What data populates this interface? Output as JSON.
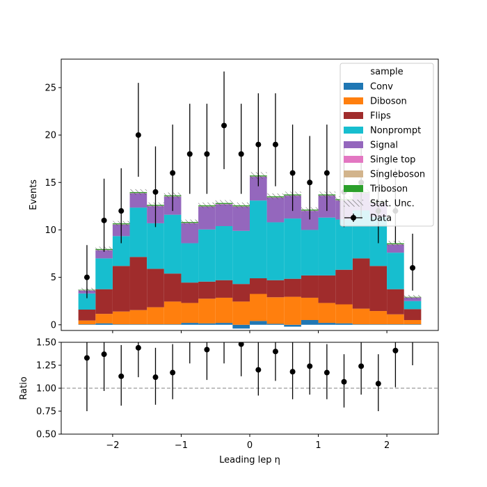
{
  "chart_data": [
    {
      "type": "bar",
      "stacked": true,
      "xlabel": "Leading lep η",
      "ylabel": "Events",
      "xlim": [
        -2.75,
        2.75
      ],
      "ylim": [
        -0.6,
        28
      ],
      "xticks": [
        -2,
        -1,
        0,
        1,
        2
      ],
      "xtick_labels": [
        "−2",
        "−1",
        "0",
        "1",
        "2"
      ],
      "yticks": [
        0,
        5,
        10,
        15,
        20,
        25
      ],
      "bin_edges": [
        -2.5,
        -2.25,
        -2.0,
        -1.75,
        -1.5,
        -1.25,
        -1.0,
        -0.75,
        -0.5,
        -0.25,
        0.0,
        0.25,
        0.5,
        0.75,
        1.0,
        1.25,
        1.5,
        1.75,
        2.0,
        2.25,
        2.5
      ],
      "legend": {
        "title": "sample",
        "location": "upper right",
        "entries": [
          "Conv",
          "Diboson",
          "Flips",
          "Nonprompt",
          "Signal",
          "Single top",
          "Singleboson",
          "Triboson",
          "Stat. Unc.",
          "Data"
        ]
      },
      "series": [
        {
          "name": "Conv",
          "color": "#1f77b4",
          "values": [
            0.05,
            0.15,
            0.05,
            0.05,
            0.05,
            0.05,
            0.2,
            0.15,
            0.2,
            -0.4,
            0.4,
            0.1,
            -0.2,
            0.5,
            0.2,
            0.15,
            0.05,
            0.05,
            0.05,
            0.05
          ]
        },
        {
          "name": "Diboson",
          "color": "#ff7f0e",
          "values": [
            0.4,
            1.0,
            1.35,
            1.5,
            1.8,
            2.4,
            2.1,
            2.6,
            2.65,
            2.45,
            2.85,
            2.8,
            2.95,
            2.35,
            2.1,
            2.0,
            1.65,
            1.4,
            1.05,
            0.45
          ]
        },
        {
          "name": "Flips",
          "color": "#a02c2c",
          "values": [
            1.15,
            2.6,
            4.8,
            5.6,
            4.05,
            2.95,
            2.15,
            1.8,
            1.85,
            1.85,
            1.65,
            1.8,
            1.9,
            2.35,
            2.9,
            3.65,
            5.3,
            4.75,
            2.65,
            1.15
          ]
        },
        {
          "name": "Nonprompt",
          "color": "#17becf",
          "values": [
            1.7,
            3.25,
            3.15,
            5.2,
            4.8,
            6.2,
            4.15,
            5.5,
            5.7,
            5.6,
            8.2,
            6.1,
            6.35,
            4.8,
            6.1,
            5.3,
            5.05,
            5.15,
            3.85,
            0.85
          ]
        },
        {
          "name": "Signal",
          "color": "#9467bd",
          "values": [
            0.3,
            0.85,
            1.2,
            1.5,
            1.8,
            1.9,
            2.1,
            2.4,
            2.3,
            2.55,
            2.5,
            2.6,
            2.4,
            2.0,
            2.3,
            2.0,
            1.8,
            1.5,
            0.85,
            0.35
          ]
        },
        {
          "name": "Single top",
          "color": "#e377c2",
          "values": [
            0.02,
            0.02,
            0.02,
            0.02,
            0.02,
            0.02,
            0.02,
            0.02,
            0.02,
            0.02,
            0.02,
            0.02,
            0.02,
            0.02,
            0.02,
            0.02,
            0.02,
            0.02,
            0.02,
            0.02
          ]
        },
        {
          "name": "Singleboson",
          "color": "#d2b48c",
          "values": [
            0.02,
            0.02,
            0.02,
            0.02,
            0.02,
            0.02,
            0.02,
            0.02,
            0.02,
            0.02,
            0.02,
            0.02,
            0.02,
            0.02,
            0.02,
            0.02,
            0.02,
            0.02,
            0.02,
            0.02
          ]
        },
        {
          "name": "Triboson",
          "color": "#2ca02c",
          "values": [
            0.05,
            0.1,
            0.1,
            0.1,
            0.1,
            0.1,
            0.1,
            0.1,
            0.1,
            0.1,
            0.1,
            0.1,
            0.1,
            0.1,
            0.1,
            0.1,
            0.1,
            0.1,
            0.1,
            0.05
          ]
        }
      ],
      "data": {
        "name": "Data",
        "values": [
          5,
          11,
          12,
          20,
          14,
          16,
          18,
          18,
          21,
          18,
          19,
          19,
          16,
          15,
          16,
          14,
          15,
          12,
          12,
          6
        ],
        "err_low": [
          2.2,
          3.3,
          3.4,
          4.4,
          3.7,
          4.0,
          4.2,
          4.2,
          4.6,
          4.2,
          4.4,
          4.4,
          4.0,
          3.9,
          4.0,
          3.7,
          3.9,
          3.4,
          3.4,
          2.4
        ],
        "err_high": [
          3.4,
          4.4,
          4.5,
          5.5,
          4.8,
          5.1,
          5.3,
          5.3,
          5.7,
          5.3,
          5.4,
          5.4,
          5.1,
          4.9,
          5.1,
          4.8,
          4.9,
          4.5,
          4.5,
          3.6
        ]
      },
      "stat_unc": [
        0.2,
        0.25,
        0.25,
        0.3,
        0.25,
        0.3,
        0.25,
        0.3,
        0.3,
        0.3,
        0.35,
        0.3,
        0.3,
        0.25,
        0.3,
        0.3,
        0.3,
        0.25,
        0.25,
        0.2
      ]
    },
    {
      "type": "scatter",
      "xlabel": "Leading lep η",
      "ylabel": "Ratio",
      "xlim": [
        -2.75,
        2.75
      ],
      "ylim": [
        0.5,
        1.5
      ],
      "yticks": [
        0.5,
        0.75,
        1.0,
        1.25,
        1.5
      ],
      "ytick_labels": [
        "0.50",
        "0.75",
        "1.00",
        "1.25",
        "1.50"
      ],
      "xticks": [
        -2,
        -1,
        0,
        1,
        2
      ],
      "xtick_labels": [
        "−2",
        "−1",
        "0",
        "1",
        "2"
      ],
      "reference_line": 1.0,
      "x": [
        -2.375,
        -2.125,
        -1.875,
        -1.625,
        -1.375,
        -1.125,
        -0.875,
        -0.625,
        -0.375,
        -0.125,
        0.125,
        0.375,
        0.625,
        0.875,
        1.125,
        1.375,
        1.625,
        1.875,
        2.125,
        2.375
      ],
      "values": [
        1.33,
        1.37,
        1.13,
        1.44,
        1.12,
        1.17,
        1.55,
        1.42,
        1.6,
        1.48,
        1.2,
        1.4,
        1.18,
        1.24,
        1.17,
        1.07,
        1.24,
        1.05,
        1.41,
        1.6
      ],
      "err_low": [
        0.58,
        0.4,
        0.32,
        0.32,
        0.3,
        0.29,
        0.28,
        0.33,
        0.33,
        0.35,
        0.28,
        0.32,
        0.3,
        0.31,
        0.29,
        0.28,
        0.31,
        0.3,
        0.4,
        0.35
      ],
      "err_high": [
        0.6,
        0.42,
        0.34,
        0.34,
        0.32,
        0.31,
        0.3,
        0.35,
        0.35,
        0.37,
        0.3,
        0.34,
        0.32,
        0.33,
        0.31,
        0.3,
        0.33,
        0.32,
        0.42,
        0.37
      ]
    }
  ]
}
